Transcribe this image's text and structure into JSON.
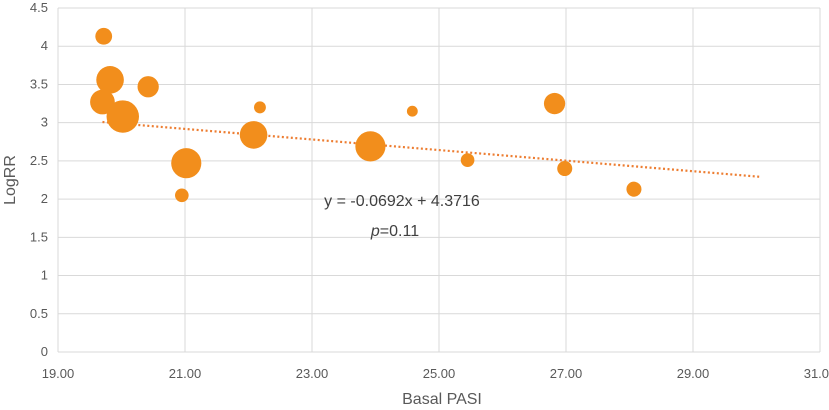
{
  "chart_data": {
    "type": "scatter",
    "xlabel": "Basal PASI",
    "ylabel": "LogRR",
    "xlim": [
      19,
      31
    ],
    "ylim": [
      0,
      4.5
    ],
    "x_ticks": [
      "19.00",
      "21.00",
      "23.00",
      "25.00",
      "27.00",
      "29.00",
      "31.00"
    ],
    "y_ticks": [
      "0",
      "0.5",
      "1",
      "1.5",
      "2",
      "2.5",
      "3",
      "3.5",
      "4",
      "4.5"
    ],
    "grid": true,
    "bubble": true,
    "points": [
      {
        "x": 19.72,
        "y": 4.13,
        "size": 1
      },
      {
        "x": 19.82,
        "y": 3.56,
        "size": 4
      },
      {
        "x": 19.7,
        "y": 3.27,
        "size": 3
      },
      {
        "x": 20.42,
        "y": 3.47,
        "size": 2
      },
      {
        "x": 20.02,
        "y": 3.08,
        "size": 6
      },
      {
        "x": 21.02,
        "y": 2.47,
        "size": 5
      },
      {
        "x": 20.95,
        "y": 2.05,
        "size": 0.5
      },
      {
        "x": 22.08,
        "y": 2.84,
        "size": 4
      },
      {
        "x": 22.18,
        "y": 3.2,
        "size": 0.3
      },
      {
        "x": 23.92,
        "y": 2.69,
        "size": 5
      },
      {
        "x": 24.58,
        "y": 3.15,
        "size": 0.2
      },
      {
        "x": 25.45,
        "y": 2.51,
        "size": 0.5
      },
      {
        "x": 26.82,
        "y": 3.25,
        "size": 2
      },
      {
        "x": 26.98,
        "y": 2.4,
        "size": 0.7
      },
      {
        "x": 28.07,
        "y": 2.13,
        "size": 0.7
      }
    ],
    "trendline": {
      "slope": -0.0692,
      "intercept": 4.3716,
      "x_start": 19.7,
      "x_end": 30.05
    },
    "annotation": {
      "equation": "y = -0.0692x + 4.3716",
      "p_label": "p",
      "p_value": "=0.11"
    },
    "colors": {
      "points": "#F28E1C",
      "trendline": "#ED7D31",
      "grid": "#D9D9D9"
    }
  }
}
